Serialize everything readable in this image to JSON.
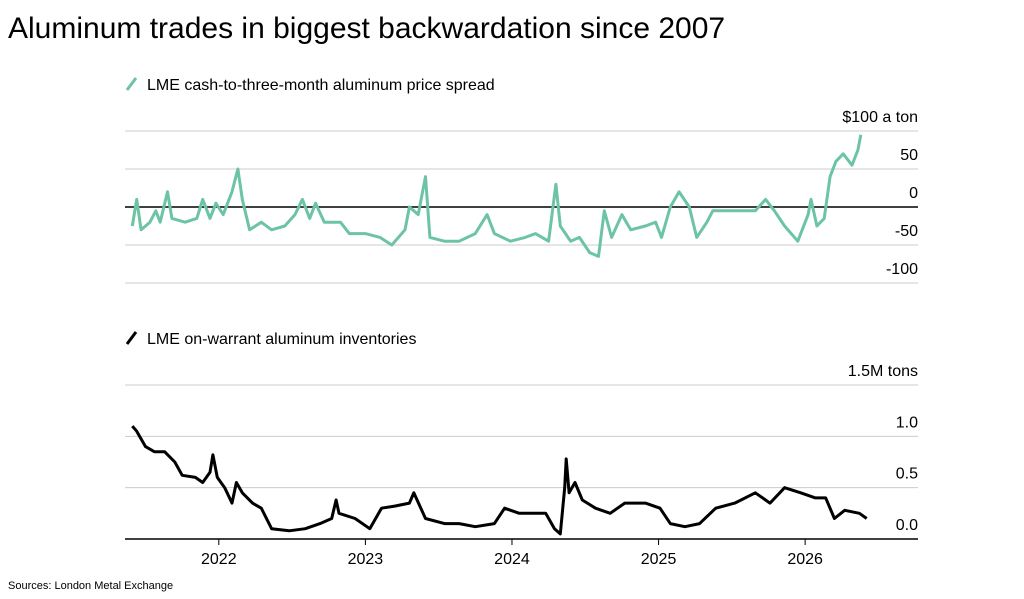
{
  "title": "Aluminum trades in biggest backwardation since 2007",
  "source": "Sources: London Metal Exchange",
  "chart_data": [
    {
      "type": "line",
      "series": [
        {
          "name": "LME cash-to-three-month aluminum price spread",
          "color": "#6cc4a4",
          "values": [
            -25,
            10,
            -30,
            -20,
            -5,
            -20,
            20,
            -15,
            -20,
            -15,
            10,
            -15,
            5,
            -10,
            20,
            50,
            10,
            -30,
            -20,
            -30,
            -25,
            -10,
            10,
            -15,
            5,
            -20,
            -20,
            -35,
            -35,
            -40,
            -50,
            -30,
            0,
            -10,
            40,
            -40,
            -45,
            -45,
            -35,
            -10,
            -35,
            -45,
            -40,
            -35,
            -45,
            30,
            -25,
            -45,
            -40,
            -60,
            -65,
            -5,
            -40,
            -10,
            -30,
            -25,
            -20,
            -40,
            0,
            20,
            0,
            -40,
            -20,
            -5,
            -5,
            -5,
            -5,
            10,
            -5,
            -25,
            -45,
            -10,
            10,
            -25,
            -15,
            40,
            60,
            70,
            55,
            75,
            95
          ]
        }
      ],
      "x": [
        2021.41,
        2021.44,
        2021.47,
        2021.53,
        2021.57,
        2021.6,
        2021.65,
        2021.68,
        2021.77,
        2021.85,
        2021.89,
        2021.94,
        2021.98,
        2022.03,
        2022.09,
        2022.13,
        2022.16,
        2022.21,
        2022.29,
        2022.36,
        2022.45,
        2022.52,
        2022.57,
        2022.62,
        2022.66,
        2022.72,
        2022.83,
        2022.89,
        2023.0,
        2023.1,
        2023.18,
        2023.27,
        2023.3,
        2023.36,
        2023.41,
        2023.44,
        2023.54,
        2023.64,
        2023.75,
        2023.83,
        2023.88,
        2023.99,
        2024.09,
        2024.16,
        2024.25,
        2024.3,
        2024.33,
        2024.4,
        2024.46,
        2024.53,
        2024.59,
        2024.63,
        2024.68,
        2024.75,
        2024.81,
        2024.91,
        2024.98,
        2025.02,
        2025.08,
        2025.14,
        2025.21,
        2025.26,
        2025.33,
        2025.37,
        2025.45,
        2025.56,
        2025.66,
        2025.73,
        2025.79,
        2025.86,
        2025.95,
        2026.02,
        2026.04,
        2026.08,
        2026.13,
        2026.17,
        2026.21,
        2026.26,
        2026.32,
        2026.36,
        2026.38
      ],
      "xlim": [
        2021.36,
        2026.77
      ],
      "ylim": [
        -100,
        100
      ],
      "yticks": [
        {
          "value": 100,
          "label": "$100 a ton"
        },
        50,
        0,
        -50,
        -100
      ],
      "grid": true
    },
    {
      "type": "line",
      "series": [
        {
          "name": "LME on-warrant aluminum inventories",
          "color": "#000000",
          "values": [
            1.1,
            1.05,
            0.9,
            0.85,
            0.85,
            0.75,
            0.62,
            0.6,
            0.55,
            0.65,
            0.82,
            0.6,
            0.5,
            0.35,
            0.55,
            0.45,
            0.35,
            0.3,
            0.1,
            0.08,
            0.1,
            0.15,
            0.2,
            0.38,
            0.25,
            0.2,
            0.1,
            0.3,
            0.32,
            0.35,
            0.45,
            0.2,
            0.15,
            0.15,
            0.12,
            0.15,
            0.3,
            0.25,
            0.25,
            0.1,
            0.05,
            0.5,
            0.78,
            0.45,
            0.55,
            0.38,
            0.3,
            0.25,
            0.35,
            0.35,
            0.3,
            0.15,
            0.12,
            0.15,
            0.3,
            0.35,
            0.45,
            0.35,
            0.5,
            0.45,
            0.4,
            0.4,
            0.2,
            0.28,
            0.25,
            0.2
          ]
        }
      ],
      "x": [
        2021.41,
        2021.44,
        2021.5,
        2021.56,
        2021.63,
        2021.7,
        2021.75,
        2021.84,
        2021.89,
        2021.94,
        2021.96,
        2021.99,
        2022.04,
        2022.09,
        2022.12,
        2022.16,
        2022.23,
        2022.29,
        2022.36,
        2022.48,
        2022.59,
        2022.69,
        2022.77,
        2022.8,
        2022.82,
        2022.93,
        2023.03,
        2023.11,
        2023.2,
        2023.3,
        2023.33,
        2023.41,
        2023.54,
        2023.64,
        2023.75,
        2023.88,
        2023.95,
        2024.05,
        2024.23,
        2024.29,
        2024.33,
        2024.36,
        2024.37,
        2024.39,
        2024.43,
        2024.48,
        2024.57,
        2024.67,
        2024.77,
        2024.91,
        2025.01,
        2025.08,
        2025.18,
        2025.28,
        2025.39,
        2025.52,
        2025.66,
        2025.76,
        2025.86,
        2025.97,
        2026.07,
        2026.14,
        2026.2,
        2026.27,
        2026.37,
        2026.42
      ],
      "xlim": [
        2021.36,
        2026.77
      ],
      "xticks": [
        2022,
        2023,
        2024,
        2025,
        2026
      ],
      "ylim": [
        0,
        1.5
      ],
      "yticks": [
        {
          "value": 1.5,
          "label": "1.5M tons"
        },
        {
          "value": 1,
          "label": "1.0"
        },
        0.5,
        {
          "value": 0,
          "label": "0.0"
        }
      ],
      "grid": true
    }
  ]
}
